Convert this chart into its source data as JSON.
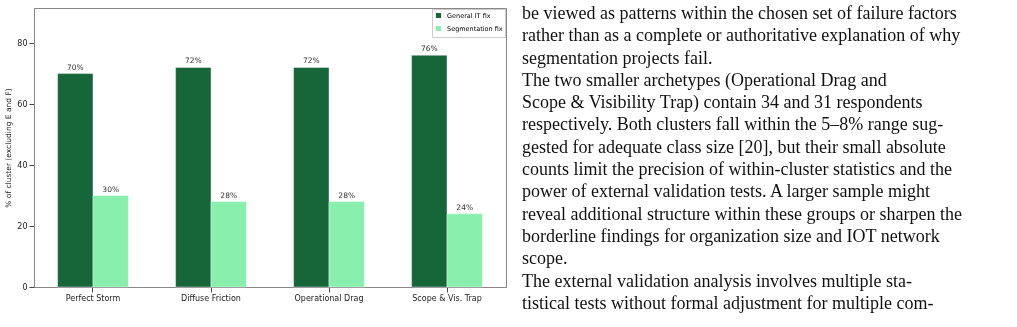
{
  "chart_data": {
    "type": "bar",
    "categories": [
      "Perfect Storm",
      "Diffuse Friction",
      "Operational Drag",
      "Scope & Vis. Trap"
    ],
    "ylabel": "% of cluster (excluding E and F)",
    "series": [
      {
        "name": "General IT fix",
        "color": "#17663a",
        "values": [
          70,
          72,
          72,
          76
        ],
        "value_labels": [
          "70%",
          "72%",
          "72%",
          "76%"
        ]
      },
      {
        "name": "Segmentation fix",
        "color": "#88efad",
        "values": [
          30,
          28,
          28,
          24
        ],
        "value_labels": [
          "30%",
          "28%",
          "28%",
          "24%"
        ]
      }
    ],
    "ylim": [
      0,
      91.5
    ],
    "yticks": [
      0,
      20,
      40,
      60,
      80
    ],
    "grid": false,
    "legend": "top right",
    "annotations": [
      "be viewed as patterns within the chosen set of failure factors",
      "rather than as a complete or authoritative explanation of why",
      "segmentation projects fail.",
      "The two smaller archetypes (Operational Drag and",
      "Scope & Visibility Trap) contain 34 and 31 respondents",
      "respectively. Both clusters fall within the 5–8% range sug-",
      "gested for adequate class size [20], but their small absolute",
      "counts limit the precision of within-cluster statistics and the",
      "power of external validation tests. A larger sample might",
      "reveal additional structure within these groups or sharpen the",
      "borderline findings for organization size and IOT network",
      "scope.",
      "The external validation analysis involves multiple sta-",
      "tistical tests without formal adjustment for multiple com-"
    ]
  }
}
